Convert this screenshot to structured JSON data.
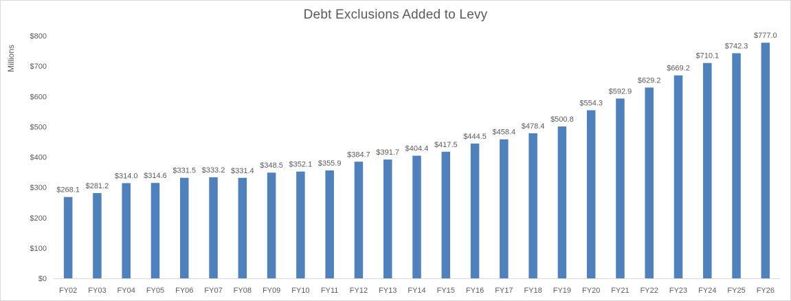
{
  "chart_data": {
    "type": "bar",
    "title": "Debt Exclusions Added to Levy",
    "xlabel": "",
    "ylabel": "Millions",
    "ylim": [
      0,
      800
    ],
    "y_ticks": [
      0,
      100,
      200,
      300,
      400,
      500,
      600,
      700,
      800
    ],
    "y_tick_labels": [
      "$0",
      "$100",
      "$200",
      "$300",
      "$400",
      "$500",
      "$600",
      "$700",
      "$800"
    ],
    "grid": false,
    "legend": "none",
    "bar_color": "#4f81bd",
    "categories": [
      "FY02",
      "FY03",
      "FY04",
      "FY05",
      "FY06",
      "FY07",
      "FY08",
      "FY09",
      "FY10",
      "FY11",
      "FY12",
      "FY13",
      "FY14",
      "FY15",
      "FY16",
      "FY17",
      "FY18",
      "FY19",
      "FY20",
      "FY21",
      "FY22",
      "FY23",
      "FY24",
      "FY25",
      "FY26"
    ],
    "values": [
      268.1,
      281.2,
      314.0,
      314.6,
      331.5,
      333.2,
      331.4,
      348.5,
      352.1,
      355.9,
      384.7,
      391.7,
      404.4,
      417.5,
      444.5,
      458.4,
      478.4,
      500.8,
      554.3,
      592.9,
      629.2,
      669.2,
      710.1,
      742.3,
      777.0
    ],
    "data_labels": [
      "$268.1",
      "$281.2",
      "$314.0",
      "$314.6",
      "$331.5",
      "$333.2",
      "$331.4",
      "$348.5",
      "$352.1",
      "$355.9",
      "$384.7",
      "$391.7",
      "$404.4",
      "$417.5",
      "$444.5",
      "$458.4",
      "$478.4",
      "$500.8",
      "$554.3",
      "$592.9",
      "$629.2",
      "$669.2",
      "$710.1",
      "$742.3",
      "$777.0"
    ]
  }
}
